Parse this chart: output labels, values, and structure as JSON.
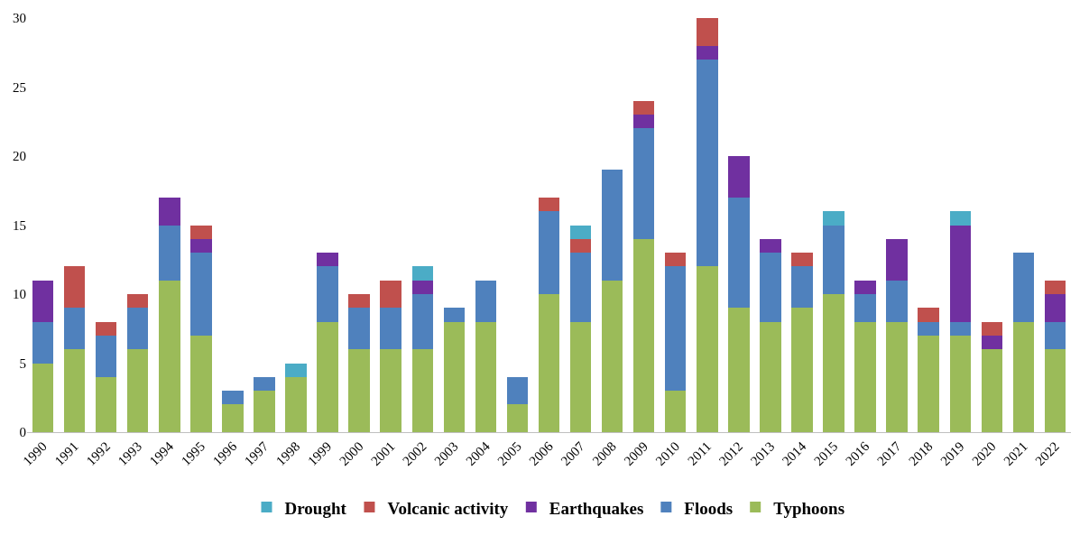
{
  "chart_data": {
    "type": "bar",
    "stacked": true,
    "categories": [
      "1990",
      "1991",
      "1992",
      "1993",
      "1994",
      "1995",
      "1996",
      "1997",
      "1998",
      "1999",
      "2000",
      "2001",
      "2002",
      "2003",
      "2004",
      "2005",
      "2006",
      "2007",
      "2008",
      "2009",
      "2010",
      "2011",
      "2012",
      "2013",
      "2014",
      "2015",
      "2016",
      "2017",
      "2018",
      "2019",
      "2020",
      "2021",
      "2022"
    ],
    "series": [
      {
        "name": "Typhoons",
        "color": "#9bbb59",
        "values": [
          5,
          6,
          4,
          6,
          11,
          7,
          2,
          3,
          4,
          8,
          6,
          6,
          6,
          8,
          8,
          2,
          10,
          8,
          11,
          14,
          3,
          12,
          9,
          8,
          9,
          10,
          8,
          8,
          7,
          7,
          6,
          8,
          6
        ]
      },
      {
        "name": "Floods",
        "color": "#4f81bd",
        "values": [
          3,
          3,
          3,
          3,
          4,
          6,
          1,
          1,
          null,
          4,
          3,
          3,
          4,
          1,
          3,
          2,
          6,
          5,
          8,
          8,
          9,
          15,
          8,
          5,
          3,
          5,
          2,
          3,
          1,
          1,
          null,
          5,
          2
        ]
      },
      {
        "name": "Earthquakes",
        "color": "#7030a0",
        "values": [
          3,
          null,
          null,
          null,
          2,
          1,
          null,
          null,
          null,
          1,
          null,
          null,
          1,
          null,
          null,
          null,
          null,
          null,
          null,
          1,
          null,
          1,
          3,
          1,
          null,
          null,
          1,
          3,
          null,
          7,
          1,
          null,
          2
        ]
      },
      {
        "name": "Volcanic activity",
        "color": "#c0504d",
        "values": [
          null,
          3,
          1,
          1,
          null,
          1,
          null,
          null,
          null,
          null,
          1,
          2,
          null,
          null,
          null,
          null,
          1,
          1,
          null,
          1,
          1,
          2,
          null,
          null,
          1,
          null,
          null,
          null,
          1,
          null,
          1,
          null,
          1
        ]
      },
      {
        "name": "Drought",
        "color": "#4bacc6",
        "values": [
          null,
          null,
          null,
          null,
          null,
          null,
          null,
          null,
          1,
          null,
          null,
          null,
          1,
          null,
          null,
          null,
          null,
          1,
          null,
          null,
          null,
          null,
          null,
          null,
          null,
          1,
          null,
          null,
          null,
          1,
          null,
          null,
          null
        ]
      }
    ],
    "ylim": [
      0,
      30
    ],
    "yticks": [
      0,
      5,
      10,
      15,
      20,
      25,
      30
    ],
    "grid": false,
    "legend": "bottom"
  }
}
